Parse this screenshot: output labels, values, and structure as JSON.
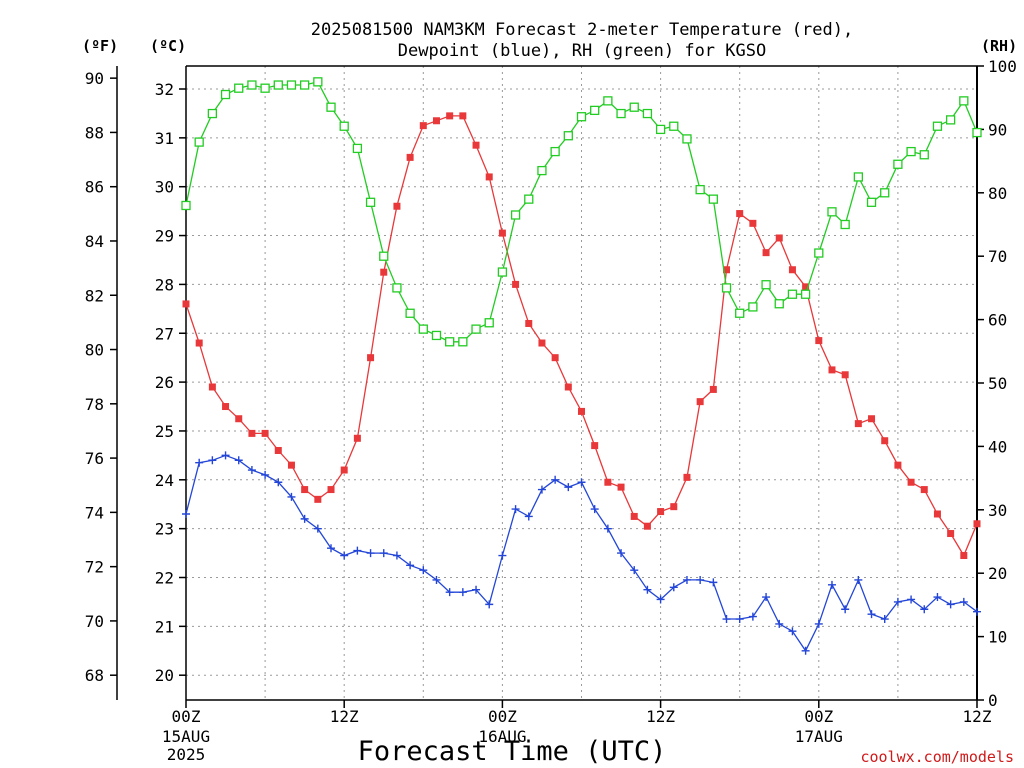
{
  "chart_data": {
    "type": "line",
    "title": [
      "2025081500 NAM3KM Forecast 2-meter Temperature (red),",
      "Dewpoint (blue), RH (green) for KGSO"
    ],
    "xlabel": "Forecast Time (UTC)",
    "credit": "coolwx.com/models",
    "x_start_hour": 0,
    "x_range_hours": [
      0,
      60
    ],
    "x_ticks": [
      {
        "hour": 0,
        "label": "00Z",
        "sub": [
          "15AUG",
          "2025"
        ]
      },
      {
        "hour": 12,
        "label": "12Z",
        "sub": []
      },
      {
        "hour": 24,
        "label": "00Z",
        "sub": [
          "16AUG"
        ]
      },
      {
        "hour": 36,
        "label": "12Z",
        "sub": []
      },
      {
        "hour": 48,
        "label": "00Z",
        "sub": [
          "17AUG"
        ]
      },
      {
        "hour": 60,
        "label": "12Z",
        "sub": []
      }
    ],
    "y_left_c": {
      "unit": "(ºC)",
      "range": [
        19.5,
        32.5
      ],
      "ticks": [
        20,
        21,
        22,
        23,
        24,
        25,
        26,
        27,
        28,
        29,
        30,
        31,
        32
      ]
    },
    "y_left_f": {
      "unit": "(ºF)",
      "ticks": [
        68,
        70,
        72,
        74,
        76,
        78,
        80,
        82,
        84,
        86,
        88,
        90
      ]
    },
    "y_right_rh": {
      "unit": "(RH)",
      "range": [
        0,
        100
      ],
      "ticks": [
        0,
        10,
        20,
        30,
        40,
        50,
        60,
        70,
        80,
        90,
        100
      ]
    },
    "grid": true,
    "series": [
      {
        "name": "Temperature",
        "axis": "celsius",
        "color": "#e8383a",
        "marker": "filled-square",
        "hours": [
          0,
          1,
          2,
          3,
          4,
          5,
          6,
          7,
          8,
          9,
          10,
          11,
          12,
          13,
          14,
          15,
          16,
          17,
          18,
          19,
          20,
          21,
          22,
          23,
          24,
          25,
          26,
          27,
          28,
          29,
          30,
          31,
          32,
          33,
          34,
          35,
          36,
          37,
          38,
          39,
          40,
          41,
          42,
          43,
          44,
          45,
          46,
          47,
          48,
          49,
          50,
          51,
          52,
          53,
          54,
          55,
          56,
          57,
          58,
          59,
          60
        ],
        "values": [
          27.6,
          26.8,
          25.9,
          25.5,
          25.25,
          24.95,
          24.95,
          24.6,
          24.3,
          23.8,
          23.6,
          23.8,
          24.2,
          24.85,
          26.5,
          28.25,
          29.6,
          30.6,
          31.25,
          31.35,
          31.45,
          31.45,
          30.85,
          30.2,
          29.05,
          28.0,
          27.2,
          26.8,
          26.5,
          25.9,
          25.4,
          24.7,
          23.95,
          23.85,
          23.25,
          23.05,
          23.35,
          23.45,
          24.05,
          25.6,
          25.85,
          28.3,
          29.45,
          29.25,
          28.65,
          28.95,
          28.3,
          27.95,
          26.85,
          26.25,
          26.15,
          25.15,
          25.25,
          24.8,
          24.3,
          23.95,
          23.8,
          23.3,
          22.9,
          22.45,
          23.1
        ]
      },
      {
        "name": "Dewpoint",
        "axis": "celsius",
        "color": "#2346d8",
        "marker": "plus",
        "hours": [
          0,
          1,
          2,
          3,
          4,
          5,
          6,
          7,
          8,
          9,
          10,
          11,
          12,
          13,
          14,
          15,
          16,
          17,
          18,
          19,
          20,
          21,
          22,
          23,
          24,
          25,
          26,
          27,
          28,
          29,
          30,
          31,
          32,
          33,
          34,
          35,
          36,
          37,
          38,
          39,
          40,
          41,
          42,
          43,
          44,
          45,
          46,
          47,
          48,
          49,
          50,
          51,
          52,
          53,
          54,
          55,
          56,
          57,
          58,
          59,
          60
        ],
        "values": [
          23.3,
          24.35,
          24.4,
          24.5,
          24.4,
          24.2,
          24.1,
          23.95,
          23.65,
          23.2,
          23.0,
          22.6,
          22.45,
          22.55,
          22.5,
          22.5,
          22.45,
          22.25,
          22.15,
          21.95,
          21.7,
          21.7,
          21.75,
          21.45,
          22.45,
          23.4,
          23.25,
          23.8,
          24.0,
          23.85,
          23.95,
          23.4,
          23.0,
          22.5,
          22.15,
          21.75,
          21.55,
          21.8,
          21.95,
          21.95,
          21.9,
          21.15,
          21.15,
          21.2,
          21.6,
          21.05,
          20.9,
          20.5,
          21.05,
          21.85,
          21.35,
          21.95,
          21.25,
          21.15,
          21.5,
          21.55,
          21.35,
          21.6,
          21.45,
          21.5,
          21.3
        ]
      },
      {
        "name": "RH",
        "axis": "rh",
        "color": "#22cc22",
        "marker": "open-square",
        "hours": [
          0,
          1,
          2,
          3,
          4,
          5,
          6,
          7,
          8,
          9,
          10,
          11,
          12,
          13,
          14,
          15,
          16,
          17,
          18,
          19,
          20,
          21,
          22,
          23,
          24,
          25,
          26,
          27,
          28,
          29,
          30,
          31,
          32,
          33,
          34,
          35,
          36,
          37,
          38,
          39,
          40,
          41,
          42,
          43,
          44,
          45,
          46,
          47,
          48,
          49,
          50,
          51,
          52,
          53,
          54,
          55,
          56,
          57,
          58,
          59,
          60
        ],
        "values": [
          78,
          88,
          92.5,
          95.5,
          96.5,
          97,
          96.5,
          97,
          97,
          97,
          97.5,
          93.5,
          90.5,
          87,
          78.5,
          70,
          65,
          61,
          58.5,
          57.5,
          56.5,
          56.5,
          58.5,
          59.5,
          67.5,
          76.5,
          79,
          83.5,
          86.5,
          89,
          92,
          93,
          94.5,
          92.5,
          93.5,
          92.5,
          90,
          90.5,
          88.5,
          80.5,
          79,
          65,
          61,
          62,
          65.5,
          62.5,
          64,
          64,
          70.5,
          77,
          75,
          82.5,
          78.5,
          80,
          84.5,
          86.5,
          86,
          90.5,
          91.5,
          94.5,
          89.5
        ]
      }
    ]
  }
}
